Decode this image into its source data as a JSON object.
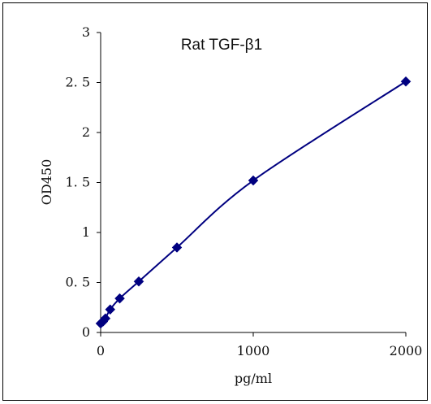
{
  "chart_data": {
    "type": "line",
    "title": "Rat   TGF-β1",
    "xlabel": "pg/ml",
    "ylabel": "OD450",
    "xlim": [
      0,
      2000
    ],
    "ylim": [
      0,
      3
    ],
    "x_ticks": [
      0,
      1000,
      2000
    ],
    "y_ticks": [
      0,
      0.5,
      1,
      1.5,
      2,
      2.5,
      3
    ],
    "x_tick_labels": [
      "0",
      "1000",
      "2000"
    ],
    "y_tick_labels": [
      "0",
      "0. 5",
      "1",
      "1. 5",
      "2",
      "2. 5",
      "3"
    ],
    "grid": false,
    "legend": "none",
    "series": [
      {
        "marker": "diamond",
        "color": "#000080",
        "x": [
          0,
          15.6,
          31.2,
          62.5,
          125,
          250,
          500,
          1000,
          2000
        ],
        "y": [
          0.09,
          0.11,
          0.14,
          0.23,
          0.34,
          0.51,
          0.85,
          1.52,
          2.51
        ]
      }
    ]
  }
}
